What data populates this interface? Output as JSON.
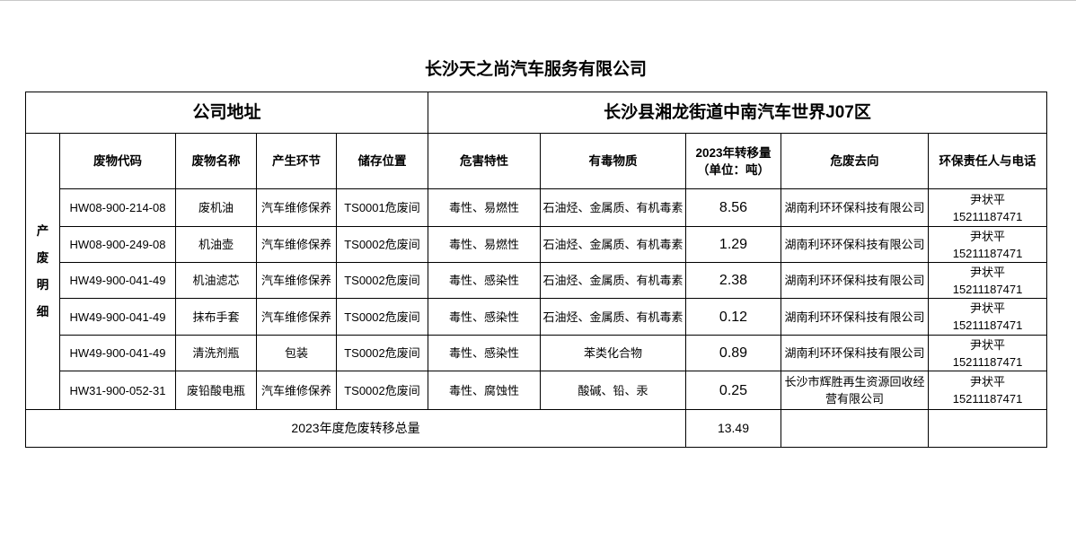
{
  "title": "长沙天之尚汽车服务有限公司",
  "address_label": "公司地址",
  "address_value": "长沙县湘龙街道中南汽车世界J07区",
  "side_label": [
    "产",
    "废",
    "明",
    "细"
  ],
  "columns": [
    "废物代码",
    "废物名称",
    "产生环节",
    "储存位置",
    "危害特性",
    "有毒物质",
    "2023年转移量",
    "（单位：吨）",
    "危废去向",
    "环保责任人与电话"
  ],
  "rows": [
    {
      "code": "HW08-900-214-08",
      "name": "废机油",
      "stage": "汽车维修保养",
      "storage": "TS0001危废间",
      "hazard": "毒性、易燃性",
      "toxic": "石油烃、金属质、有机毒素",
      "amount": "8.56",
      "dest": "湖南利环环保科技有限公司",
      "person": "尹状平",
      "phone": "15211187471"
    },
    {
      "code": "HW08-900-249-08",
      "name": "机油壶",
      "stage": "汽车维修保养",
      "storage": "TS0002危废间",
      "hazard": "毒性、易燃性",
      "toxic": "石油烃、金属质、有机毒素",
      "amount": "1.29",
      "dest": "湖南利环环保科技有限公司",
      "person": "尹状平",
      "phone": "15211187471"
    },
    {
      "code": "HW49-900-041-49",
      "name": "机油滤芯",
      "stage": "汽车维修保养",
      "storage": "TS0002危废间",
      "hazard": "毒性、感染性",
      "toxic": "石油烃、金属质、有机毒素",
      "amount": "2.38",
      "dest": "湖南利环环保科技有限公司",
      "person": "尹状平",
      "phone": "15211187471"
    },
    {
      "code": "HW49-900-041-49",
      "name": "抹布手套",
      "stage": "汽车维修保养",
      "storage": "TS0002危废间",
      "hazard": "毒性、感染性",
      "toxic": "石油烃、金属质、有机毒素",
      "amount": "0.12",
      "dest": "湖南利环环保科技有限公司",
      "person": "尹状平",
      "phone": "15211187471"
    },
    {
      "code": "HW49-900-041-49",
      "name": "清洗剂瓶",
      "stage": "包装",
      "storage": "TS0002危废间",
      "hazard": "毒性、感染性",
      "toxic": "苯类化合物",
      "amount": "0.89",
      "dest": "湖南利环环保科技有限公司",
      "person": "尹状平",
      "phone": "15211187471"
    },
    {
      "code": "HW31-900-052-31",
      "name": "废铅酸电瓶",
      "stage": "汽车维修保养",
      "storage": "TS0002危废间",
      "hazard": "毒性、腐蚀性",
      "toxic": "酸碱、铅、汞",
      "amount": "0.25",
      "dest": "长沙市辉胜再生资源回收经营有限公司",
      "person": "尹状平",
      "phone": "15211187471"
    }
  ],
  "total_label": "2023年度危废转移总量",
  "total_value": "13.49"
}
